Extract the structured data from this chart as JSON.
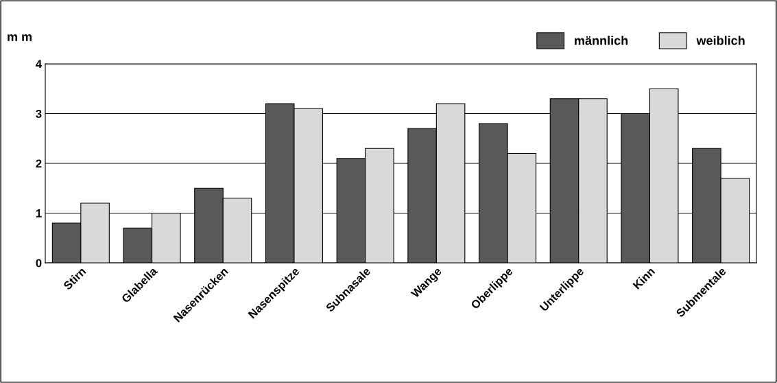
{
  "chart_data": {
    "type": "bar",
    "ylabel": "m m",
    "categories": [
      "Stirn",
      "Glabella",
      "Nasenrücken",
      "Nasenspitze",
      "Subnasale",
      "Wange",
      "Oberlippe",
      "Unterlippe",
      "Kinn",
      "Submentale"
    ],
    "series": [
      {
        "name": "männlich",
        "color": "#595959",
        "values": [
          0.8,
          0.7,
          1.5,
          3.2,
          2.1,
          2.7,
          2.8,
          3.3,
          3.0,
          2.3
        ]
      },
      {
        "name": "weiblich",
        "color": "#d9d9d9",
        "values": [
          1.2,
          1.0,
          1.3,
          3.1,
          2.3,
          3.2,
          2.2,
          3.3,
          3.5,
          1.7
        ]
      }
    ],
    "ylim": [
      0,
      4
    ],
    "yticks": [
      0,
      1,
      2,
      3,
      4
    ],
    "grid": "y",
    "legend": "top right"
  }
}
